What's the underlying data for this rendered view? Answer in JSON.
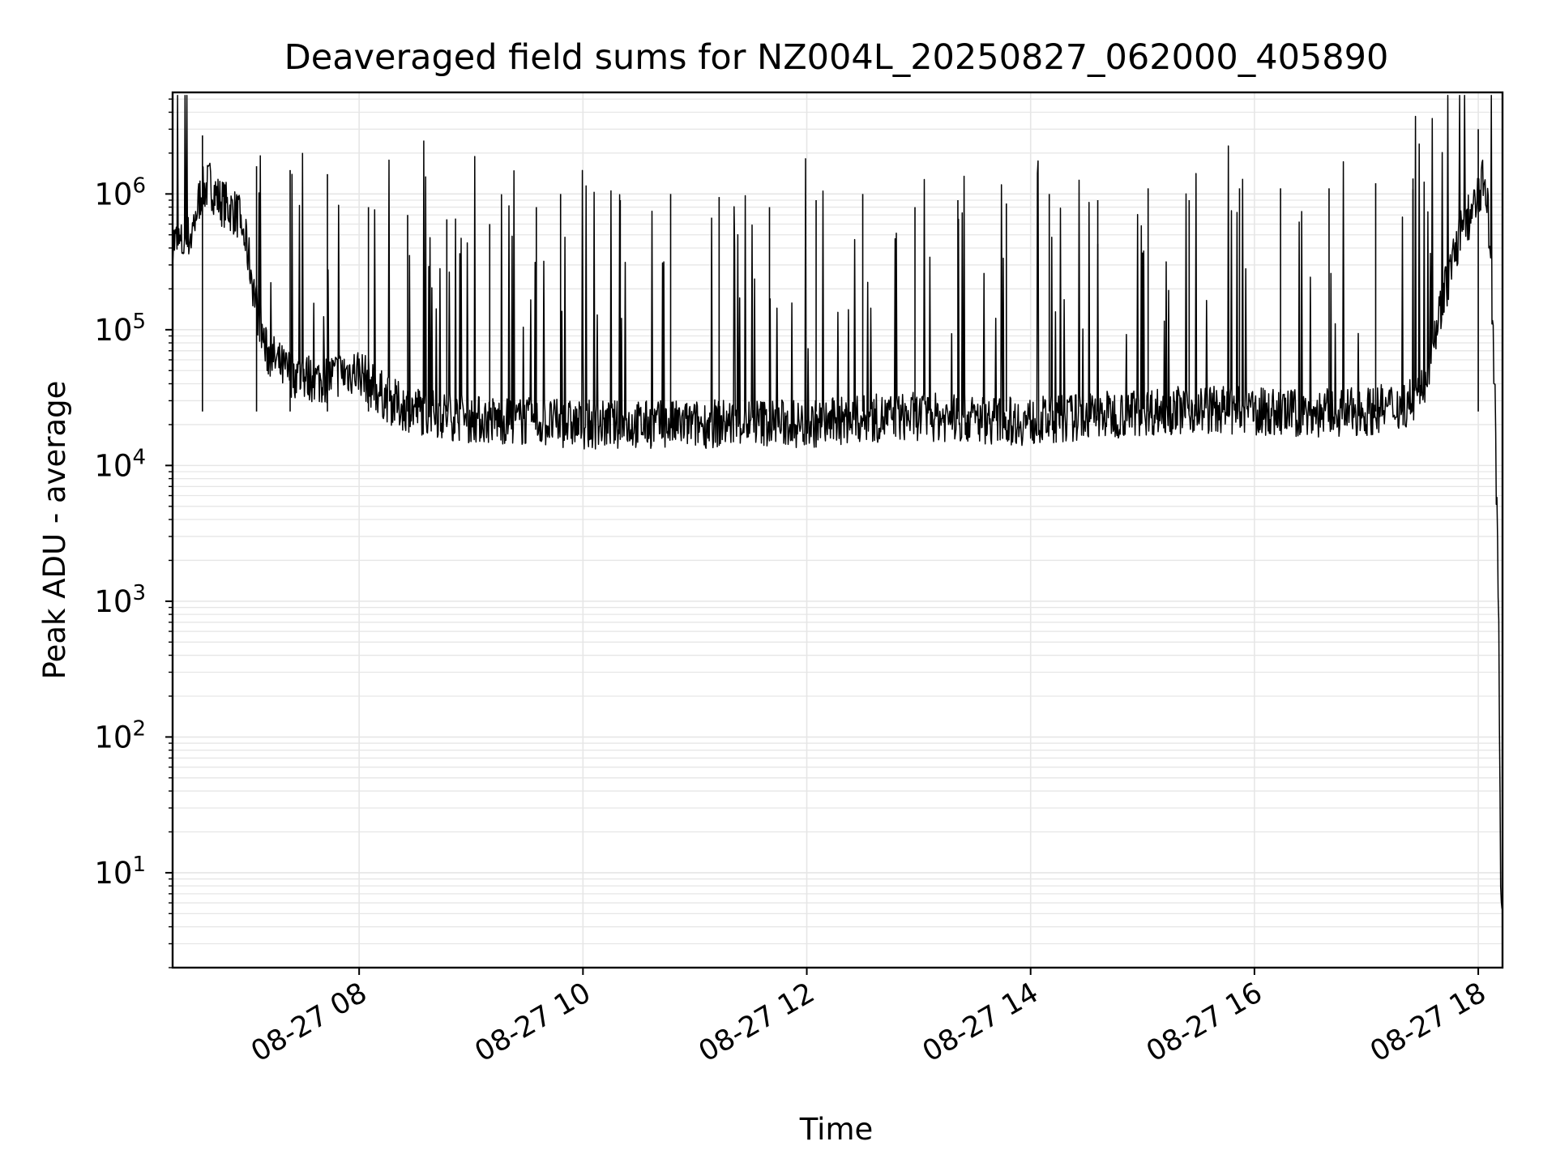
{
  "chart_data": {
    "type": "line",
    "title": "Deaveraged field sums for NZ004L_20250827_062000_405890",
    "xlabel": "Time",
    "ylabel": "Peak ADU - average",
    "yscale": "log",
    "ylim": [
      2,
      5600000
    ],
    "xlim": [
      "2025-08-27 06:20",
      "2025-08-27 18:13"
    ],
    "grid": true,
    "legend": "none",
    "line_color": "#000000",
    "grid_color": "#e6e6e6",
    "x_ticks": [
      {
        "value": "2025-08-27 08:00",
        "label": "08-27 08"
      },
      {
        "value": "2025-08-27 10:00",
        "label": "08-27 10"
      },
      {
        "value": "2025-08-27 12:00",
        "label": "08-27 12"
      },
      {
        "value": "2025-08-27 14:00",
        "label": "08-27 14"
      },
      {
        "value": "2025-08-27 16:00",
        "label": "08-27 16"
      },
      {
        "value": "2025-08-27 18:00",
        "label": "08-27 18"
      }
    ],
    "y_ticks": [
      {
        "value": 10,
        "base": "10",
        "exp": "1"
      },
      {
        "value": 100,
        "base": "10",
        "exp": "2"
      },
      {
        "value": 1000,
        "base": "10",
        "exp": "3"
      },
      {
        "value": 10000,
        "base": "10",
        "exp": "4"
      },
      {
        "value": 100000,
        "base": "10",
        "exp": "5"
      },
      {
        "value": 1000000,
        "base": "10",
        "exp": "6"
      }
    ],
    "series": [
      {
        "x": [
          "2025-08-27 06:20",
          "2025-08-27 06:25",
          "2025-08-27 06:30",
          "2025-08-27 06:35",
          "2025-08-27 06:40",
          "2025-08-27 06:45",
          "2025-08-27 06:50",
          "2025-08-27 06:55",
          "2025-08-27 07:00",
          "2025-08-27 07:05",
          "2025-08-27 07:10",
          "2025-08-27 07:20",
          "2025-08-27 07:30",
          "2025-08-27 07:40",
          "2025-08-27 07:50",
          "2025-08-27 08:00",
          "2025-08-27 08:10",
          "2025-08-27 08:20",
          "2025-08-27 08:40",
          "2025-08-27 09:00",
          "2025-08-27 09:30",
          "2025-08-27 10:00",
          "2025-08-27 10:30",
          "2025-08-27 11:00",
          "2025-08-27 11:30",
          "2025-08-27 12:00",
          "2025-08-27 12:30",
          "2025-08-27 13:00",
          "2025-08-27 13:30",
          "2025-08-27 14:00",
          "2025-08-27 14:30",
          "2025-08-27 15:00",
          "2025-08-27 15:30",
          "2025-08-27 16:00",
          "2025-08-27 16:30",
          "2025-08-27 17:00",
          "2025-08-27 17:20",
          "2025-08-27 17:30",
          "2025-08-27 17:40",
          "2025-08-27 17:50",
          "2025-08-27 18:00",
          "2025-08-27 18:03",
          "2025-08-27 18:05",
          "2025-08-27 18:07",
          "2025-08-27 18:09",
          "2025-08-27 18:11",
          "2025-08-27 18:12",
          "2025-08-27 18:13"
        ],
        "y": [
          450000,
          420000,
          500000,
          1000000,
          1200000,
          900000,
          800000,
          700000,
          400000,
          150000,
          70000,
          50000,
          45000,
          42000,
          48000,
          50000,
          35000,
          28000,
          24000,
          22000,
          21000,
          20000,
          20000,
          20000,
          21000,
          20000,
          22000,
          23000,
          22000,
          21000,
          23000,
          25000,
          26000,
          25000,
          24000,
          25000,
          28000,
          35000,
          150000,
          500000,
          900000,
          1300000,
          1000000,
          200000,
          30000,
          500,
          8,
          4
        ]
      }
    ],
    "spikes": {
      "x": [
        "2025-08-27 06:36",
        "2025-08-27 07:05",
        "2025-08-27 07:23",
        "2025-08-27 07:43",
        "2025-08-27 08:05",
        "2025-08-27 08:26",
        "2025-08-27 08:47",
        "2025-08-27 09:10",
        "2025-08-27 09:35",
        "2025-08-27 09:48",
        "2025-08-27 10:20",
        "2025-08-27 10:47",
        "2025-08-27 11:13",
        "2025-08-27 11:40",
        "2025-08-27 12:05",
        "2025-08-27 12:30",
        "2025-08-27 12:58",
        "2025-08-27 13:21",
        "2025-08-27 13:47",
        "2025-08-27 14:10",
        "2025-08-27 14:36",
        "2025-08-27 15:03",
        "2025-08-27 15:25",
        "2025-08-27 15:52",
        "2025-08-27 16:14",
        "2025-08-27 16:40",
        "2025-08-27 17:05",
        "2025-08-27 17:25",
        "2025-08-27 18:00"
      ],
      "y": [
        2700000,
        1600000,
        1500000,
        1400000,
        800000,
        700000,
        650000,
        600000,
        800000,
        1000000,
        900000,
        1000000,
        950000,
        800000,
        900000,
        1000000,
        800000,
        900000,
        850000,
        1000000,
        900000,
        1100000,
        900000,
        1100000,
        1100000,
        1100000,
        1200000,
        1300000,
        3000000
      ]
    }
  }
}
